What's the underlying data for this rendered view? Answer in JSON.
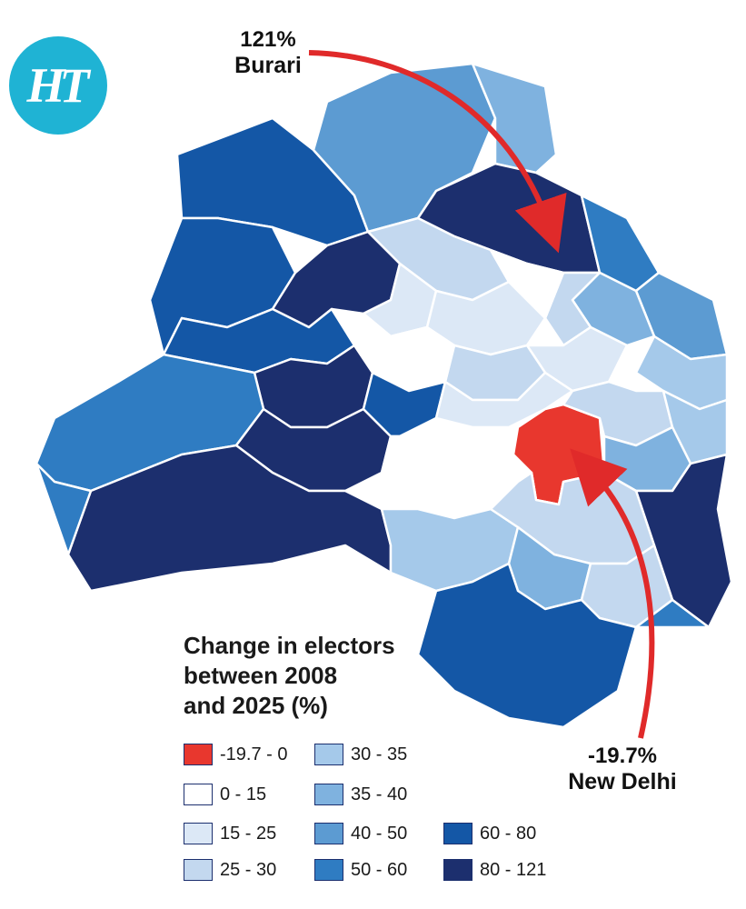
{
  "logo": {
    "text": "HT"
  },
  "legend": {
    "title_lines": [
      "Change in electors",
      "between 2008",
      "and 2025 (%)"
    ],
    "items": [
      {
        "label": "-19.7 - 0",
        "color": "#e8372e"
      },
      {
        "label": "0 - 15",
        "color": "#ffffff"
      },
      {
        "label": "15 - 25",
        "color": "#dce8f6"
      },
      {
        "label": "25 - 30",
        "color": "#c3d8ef"
      },
      {
        "label": "30 - 35",
        "color": "#a5c9ea"
      },
      {
        "label": "35 - 40",
        "color": "#7fb2df"
      },
      {
        "label": "40 - 50",
        "color": "#5c9bd2"
      },
      {
        "label": "50 - 60",
        "color": "#2f7cc2"
      },
      {
        "label": "60 - 80",
        "color": "#1457a6"
      },
      {
        "label": "80 - 121",
        "color": "#1c2f6e"
      }
    ]
  },
  "callouts": [
    {
      "pct": "121%",
      "place": "Burari",
      "value": 121,
      "color": "#1c2f6e"
    },
    {
      "pct": "-19.7%",
      "place": "New Delhi",
      "value": -19.7,
      "color": "#e8372e"
    }
  ],
  "arrow_color": "#e02a2a"
}
